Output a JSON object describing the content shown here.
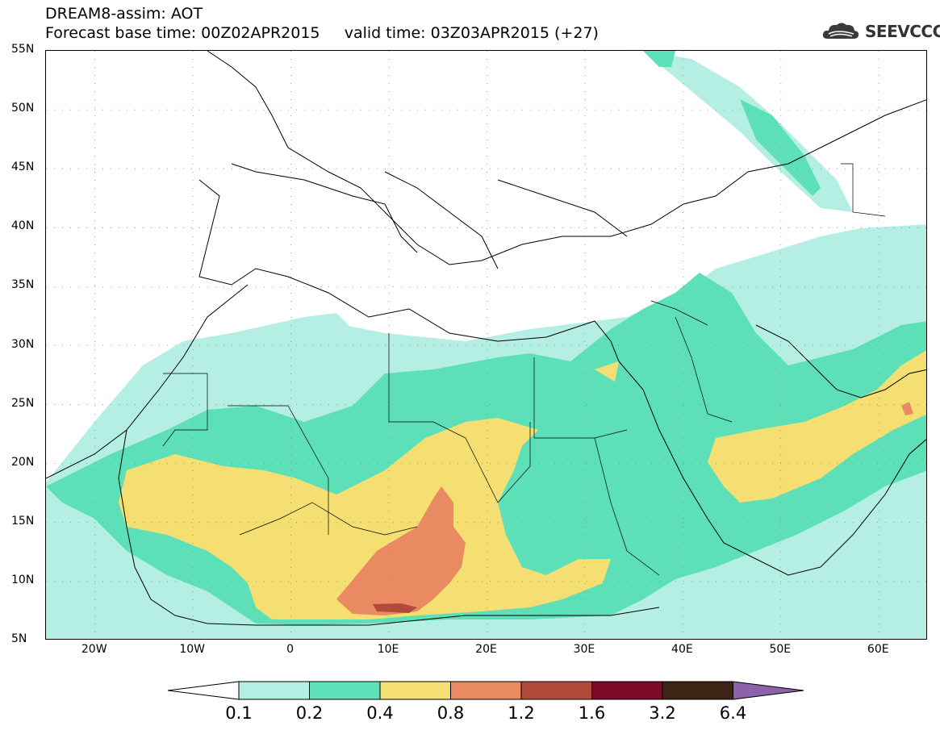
{
  "header": {
    "title": "DREAM8-assim: AOT",
    "forecast_line": "Forecast base time: 00Z02APR2015     valid time: 03Z03APR2015 (+27)"
  },
  "logo": {
    "text": "SEEVCCC",
    "icon": "cloud-logo-icon"
  },
  "map": {
    "lat_ticks": [
      "55N",
      "50N",
      "45N",
      "40N",
      "35N",
      "30N",
      "25N",
      "20N",
      "15N",
      "10N",
      "5N"
    ],
    "lon_ticks": [
      "20W",
      "10W",
      "0",
      "10E",
      "20E",
      "30E",
      "40E",
      "50E",
      "60E"
    ],
    "lon_range": [
      -25,
      65
    ],
    "lat_range": [
      5,
      55
    ],
    "projection": "lat-lon",
    "grid": "dotted"
  },
  "colorbar": {
    "labels": [
      "0.1",
      "0.2",
      "0.4",
      "0.8",
      "1.2",
      "1.6",
      "3.2",
      "6.4"
    ],
    "colors": [
      "#ffffff",
      "#b5efe4",
      "#5de0b8",
      "#f5df72",
      "#e98a62",
      "#b24a3c",
      "#7a0a26",
      "#3d2414",
      "#8c63a8"
    ]
  }
}
